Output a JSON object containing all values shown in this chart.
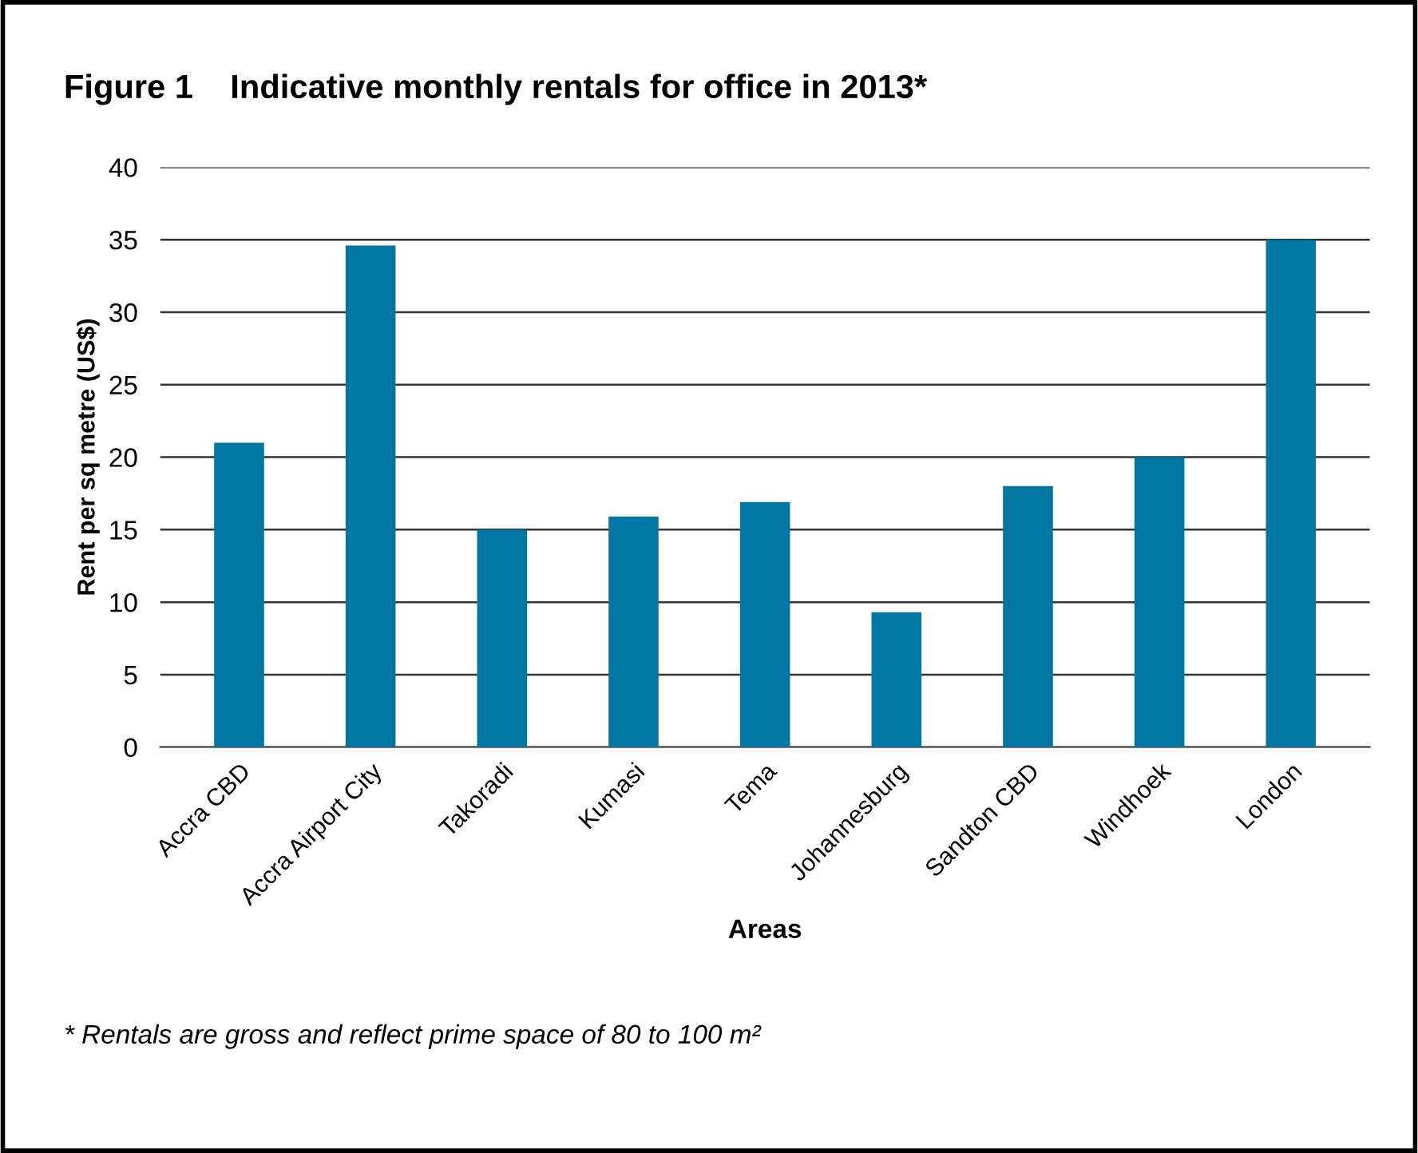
{
  "chart_data": {
    "type": "bar",
    "title": "Figure 1    Indicative monthly rentals for office in 2013*",
    "xlabel": "Areas",
    "ylabel": "Rent per sq metre (US$)",
    "categories": [
      "Accra CBD",
      "Accra Airport City",
      "Takoradi",
      "Kumasi",
      "Tema",
      "Johannesburg",
      "Sandton CBD",
      "Windhoek",
      "London"
    ],
    "values": [
      21,
      34.6,
      15,
      15.9,
      16.9,
      9.3,
      18,
      20,
      35
    ],
    "color": "#0077a3",
    "ylim": [
      0,
      40
    ],
    "yticks": [
      0,
      5,
      10,
      15,
      20,
      25,
      30,
      35,
      40
    ],
    "grid": "y",
    "annotations": [
      "* Rentals are gross and reflect prime space of 80 to 100 m²"
    ]
  }
}
